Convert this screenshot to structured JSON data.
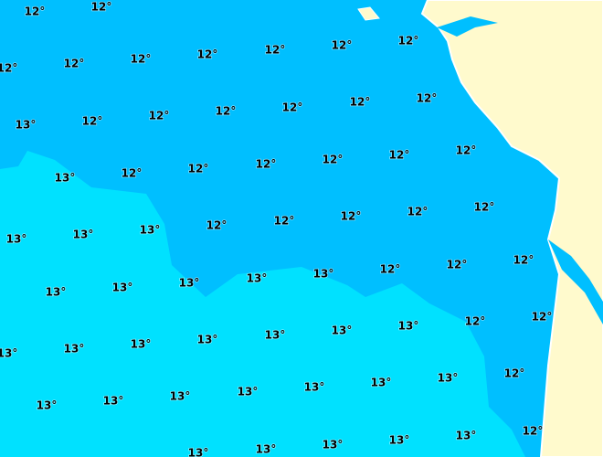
{
  "labels": [
    "12°",
    "12°",
    "12°",
    "12°",
    "12°",
    "12°",
    "12°",
    "12°",
    "12°",
    "13°",
    "12°",
    "12°",
    "12°",
    "12°",
    "12°",
    "12°",
    "13°",
    "12°",
    "12°",
    "12°",
    "12°",
    "12°",
    "12°",
    "13°",
    "13°",
    "13°",
    "12°",
    "12°",
    "12°",
    "12°",
    "12°",
    "13°",
    "13°",
    "13°",
    "13°",
    "13°",
    "12°",
    "12°",
    "12°",
    "13°",
    "13°",
    "13°",
    "13°",
    "13°",
    "13°",
    "13°",
    "12°",
    "12°",
    "13°",
    "13°",
    "13°",
    "13°",
    "13°",
    "13°",
    "13°",
    "12°",
    "13°",
    "13°",
    "13°",
    "13°",
    "13°",
    "12°"
  ]
}
